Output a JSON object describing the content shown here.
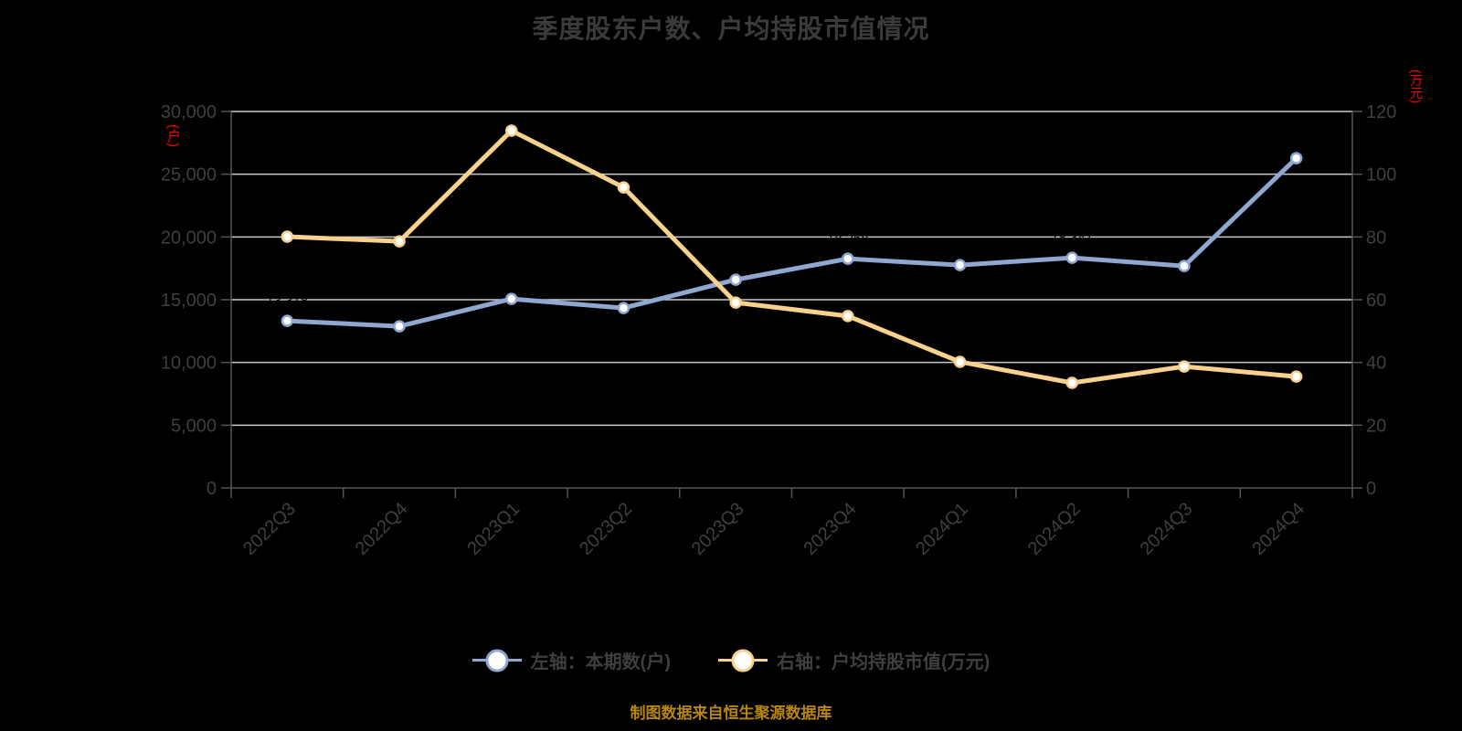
{
  "title": "季度股东户数、户均持股市值情况",
  "footer": "制图数据来自恒生聚源数据库",
  "left_axis_unit": "(户)",
  "right_axis_unit": "(万元)",
  "legend": [
    {
      "label": "左轴：本期数(户)",
      "color": "#8FA7D1"
    },
    {
      "label": "右轴：户均持股市值(万元)",
      "color": "#F9D18F"
    }
  ],
  "colors": {
    "background": "#000000",
    "grid": "#c9c9c9",
    "axis": "#555555",
    "tick_label": "#3f3f3f",
    "x_label": "#3f3f3f",
    "title": "#3b3b3b",
    "footer": "#b8860b",
    "axis_unit": "#ff0000",
    "data_label": "#000000",
    "marker_fill": "#ffffff"
  },
  "chart_data": {
    "type": "line",
    "title": "季度股东户数、户均持股市值情况",
    "categories": [
      "2022Q3",
      "2022Q4",
      "2023Q1",
      "2023Q2",
      "2023Q3",
      "2023Q4",
      "2024Q1",
      "2024Q2",
      "2024Q3",
      "2024Q4"
    ],
    "series": [
      {
        "name": "左轴：本期数(户)",
        "axis": "left",
        "color": "#8FA7D1",
        "label_position": "above",
        "values": [
          13318,
          12881,
          15066,
          14338,
          16594,
          18268,
          17758,
          18341,
          17685,
          26273
        ],
        "labels": [
          "13,318",
          "12,881",
          "15,066",
          "14,338",
          "16,594",
          "18,268",
          "17,758",
          "18,341",
          "17,685",
          "26,273"
        ]
      },
      {
        "name": "右轴：户均持股市值(万元)",
        "axis": "right",
        "color": "#F9D18F",
        "label_position": "below",
        "values": [
          80.1,
          78.6,
          113.9,
          95.8,
          59.1,
          54.8,
          40.2,
          33.5,
          38.7,
          35.5
        ],
        "labels": [
          "80.10",
          "78.60",
          "113.90",
          "95.80",
          "59.10",
          "54.80",
          "40.20",
          "33.50",
          "38.70",
          "35.50"
        ]
      }
    ],
    "left_axis": {
      "min": 0,
      "max": 30000,
      "step": 5000,
      "tick_labels": [
        "0",
        "5,000",
        "10,000",
        "15,000",
        "20,000",
        "25,000",
        "30,000"
      ]
    },
    "right_axis": {
      "min": 0,
      "max": 120,
      "step": 20,
      "tick_labels": [
        "0",
        "20",
        "40",
        "60",
        "80",
        "100",
        "120"
      ]
    },
    "grid": true,
    "legend_position": "bottom"
  }
}
